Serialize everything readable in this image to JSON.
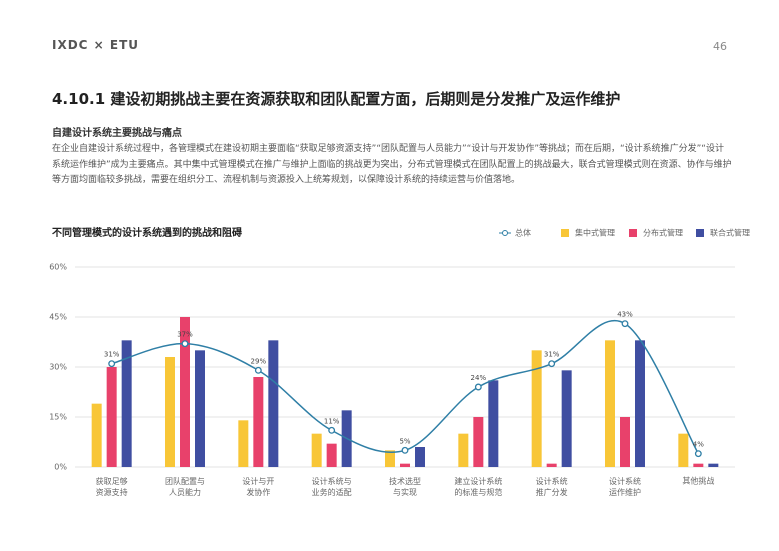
{
  "header": {
    "brand": "IXDC × ETU",
    "page": "46"
  },
  "title": "4.10.1 建设初期挑战主要在资源获取和团队配置方面，后期则是分发推广及运作维护",
  "subtitle": "自建设计系统主要挑战与痛点",
  "paragraph": "在企业自建设计系统过程中，各管理模式在建设初期主要面临“获取足够资源支持”“团队配置与人员能力”“设计与开发协作”等挑战；而在后期，“设计系统推广分发”“设计系统运作维护”成为主要痛点。其中集中式管理模式在推广与维护上面临的挑战更为突出，分布式管理模式在团队配置上的挑战最大，联合式管理模式则在资源、协作与维护等方面均面临较多挑战，需要在组织分工、流程机制与资源投入上统筹规划，以保障设计系统的持续运营与价值落地。",
  "chart_data": {
    "type": "bar",
    "title": "不同管理模式的设计系统遇到的挑战和阻碍",
    "categories": [
      "获取足够资源支持",
      "团队配置与人员能力",
      "设计与开发协作",
      "设计系统与业务的适配",
      "技术选型与实现",
      "建立设计系统的标准与规范",
      "设计系统推广分发",
      "设计系统运作维护",
      "其他挑战"
    ],
    "series": [
      {
        "name": "总体",
        "type": "line",
        "color": "#2f7fa6",
        "values": [
          31,
          37,
          29,
          11,
          5,
          24,
          31,
          43,
          4
        ],
        "value_labels": [
          "31%",
          "37%",
          "29%",
          "11%",
          "5%",
          "24%",
          "31%",
          "43%",
          "4%"
        ]
      },
      {
        "name": "集中式管理",
        "type": "bar",
        "color": "#f8c637",
        "values": [
          19,
          33,
          14,
          10,
          5,
          10,
          35,
          38,
          10
        ]
      },
      {
        "name": "分布式管理",
        "type": "bar",
        "color": "#e8416b",
        "values": [
          30,
          45,
          27,
          7,
          1,
          15,
          1,
          15,
          1
        ]
      },
      {
        "name": "联合式管理",
        "type": "bar",
        "color": "#3f4ea1",
        "values": [
          38,
          35,
          38,
          17,
          6,
          26,
          29,
          38,
          1
        ]
      }
    ],
    "ylim": [
      0,
      60
    ],
    "yticks": [
      {
        "value": 0,
        "label": "0%"
      },
      {
        "value": 15,
        "label": "15%"
      },
      {
        "value": 30,
        "label": "30%"
      },
      {
        "value": 45,
        "label": "45%"
      },
      {
        "value": 60,
        "label": "60%"
      }
    ],
    "grid": true,
    "legend": "top-right"
  }
}
